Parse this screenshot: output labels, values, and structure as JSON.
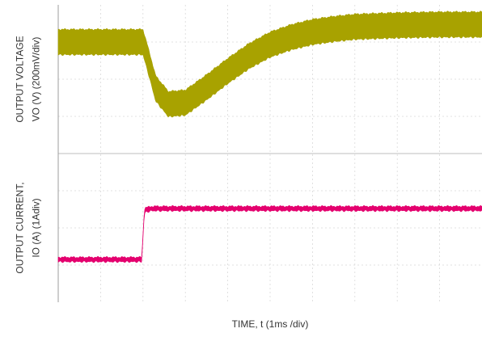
{
  "chart_data": {
    "type": "line",
    "xlabel": "TIME, t (1ms /div)",
    "x_divisions": 10,
    "grid": true,
    "x_range_div": [
      0,
      10
    ],
    "panels": [
      {
        "id": "voltage",
        "ylabel_line1": "OUTPUT VOLTAGE",
        "ylabel_line2": "VO (V) (200mV/div)",
        "y_divisions": 4,
        "y_range_div": [
          0,
          4
        ],
        "series": [
          {
            "color": "#a8a200",
            "band_thickness_div": 0.68,
            "x_div": [
              0,
              2.0,
              2.1,
              2.3,
              2.6,
              3.0,
              3.5,
              4.0,
              4.5,
              5.0,
              5.5,
              6.0,
              6.5,
              7.0,
              8.0,
              9.0,
              10.0
            ],
            "y_div": [
              3.0,
              3.0,
              2.6,
              1.75,
              1.33,
              1.37,
              1.78,
              2.22,
              2.62,
              2.93,
              3.13,
              3.27,
              3.35,
              3.41,
              3.45,
              3.47,
              3.47
            ]
          }
        ]
      },
      {
        "id": "current",
        "ylabel_line1": "OUTPUT CURRENT,",
        "ylabel_line2": "IO (A) (1Adiv)",
        "y_divisions": 4,
        "y_range_div": [
          0,
          4
        ],
        "series": [
          {
            "color": "#e4006e",
            "band_thickness_div": 0.12,
            "x_div": [
              0,
              1.97,
              2.03,
              2.05,
              2.2,
              10.0
            ],
            "y_div": [
              1.15,
              1.15,
              2.4,
              2.48,
              2.52,
              2.52
            ]
          }
        ]
      }
    ]
  }
}
